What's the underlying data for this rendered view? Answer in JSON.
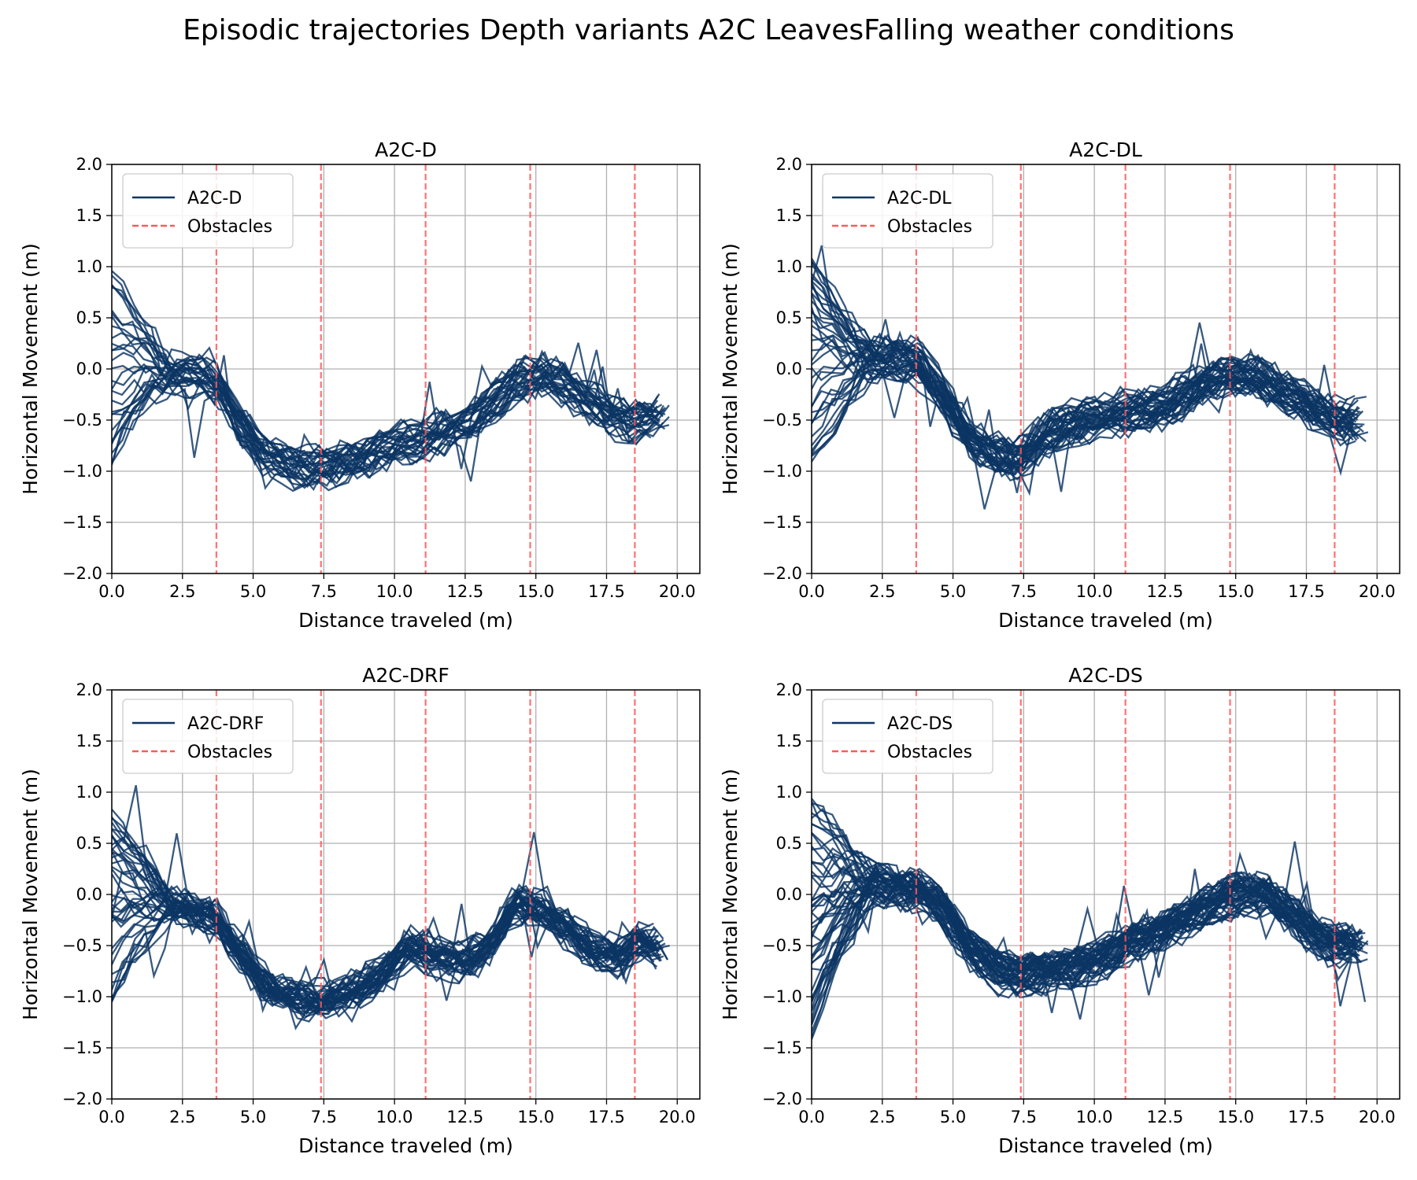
{
  "figure": {
    "title": "Episodic trajectories Depth variants A2C LeavesFalling weather conditions"
  },
  "colors": {
    "series": "#0b3563",
    "obstacle": "#ff5a5a",
    "grid": "#b0b0b0"
  },
  "chart_data": [
    {
      "type": "line",
      "title": "A2C-D",
      "xlabel": "Distance traveled (m)",
      "ylabel": "Horizontal Movement (m)",
      "xlim": [
        0,
        20.8
      ],
      "ylim": [
        -2,
        2
      ],
      "xticks": [
        "0.0",
        "2.5",
        "5.0",
        "7.5",
        "10.0",
        "12.5",
        "15.0",
        "17.5",
        "20.0"
      ],
      "yticks": [
        "−2.0",
        "−1.5",
        "−1.0",
        "−0.5",
        "0.0",
        "0.5",
        "1.0",
        "1.5",
        "2.0"
      ],
      "grid": true,
      "legend": {
        "position": "top-left",
        "entries": [
          "A2C-D",
          "Obstacles"
        ]
      },
      "obstacles_x": [
        3.7,
        7.4,
        11.1,
        14.8,
        18.5
      ],
      "n_episodes": 30,
      "mean_path": {
        "x": [
          0,
          1,
          2,
          3,
          3.7,
          4.5,
          5.5,
          6.5,
          7.4,
          8.5,
          9.5,
          10.5,
          11.5,
          12.5,
          13.5,
          14.5,
          15.3,
          16,
          17,
          18,
          18.6,
          19.5
        ],
        "y": [
          0.2,
          0.1,
          -0.05,
          -0.05,
          -0.15,
          -0.55,
          -0.85,
          -0.95,
          -0.95,
          -0.9,
          -0.8,
          -0.7,
          -0.65,
          -0.55,
          -0.3,
          -0.1,
          -0.05,
          -0.15,
          -0.35,
          -0.5,
          -0.5,
          -0.45
        ]
      },
      "start_range": [
        -0.9,
        0.95
      ]
    },
    {
      "type": "line",
      "title": "A2C-DL",
      "xlabel": "Distance traveled (m)",
      "ylabel": "Horizontal Movement (m)",
      "xlim": [
        0,
        20.8
      ],
      "ylim": [
        -2,
        2
      ],
      "xticks": [
        "0.0",
        "2.5",
        "5.0",
        "7.5",
        "10.0",
        "12.5",
        "15.0",
        "17.5",
        "20.0"
      ],
      "yticks": [
        "−2.0",
        "−1.5",
        "−1.0",
        "−0.5",
        "0.0",
        "0.5",
        "1.0",
        "1.5",
        "2.0"
      ],
      "grid": true,
      "legend": {
        "position": "top-left",
        "entries": [
          "A2C-DL",
          "Obstacles"
        ]
      },
      "obstacles_x": [
        3.7,
        7.4,
        11.1,
        14.8,
        18.5
      ],
      "n_episodes": 40,
      "mean_path": {
        "x": [
          0,
          1,
          2,
          3,
          3.7,
          4.5,
          5.5,
          6.5,
          7.4,
          8.5,
          9.5,
          10.5,
          11.5,
          12.5,
          13.5,
          14.5,
          15.3,
          16,
          17,
          18,
          18.6,
          19.6
        ],
        "y": [
          0.1,
          0.1,
          0.1,
          0.1,
          0.1,
          -0.2,
          -0.65,
          -0.85,
          -0.85,
          -0.6,
          -0.5,
          -0.45,
          -0.4,
          -0.35,
          -0.2,
          -0.05,
          -0.05,
          -0.1,
          -0.25,
          -0.4,
          -0.5,
          -0.5
        ]
      },
      "start_range": [
        -1.0,
        1.2
      ]
    },
    {
      "type": "line",
      "title": "A2C-DRF",
      "xlabel": "Distance traveled (m)",
      "ylabel": "Horizontal Movement (m)",
      "xlim": [
        0,
        20.8
      ],
      "ylim": [
        -2,
        2
      ],
      "xticks": [
        "0.0",
        "2.5",
        "5.0",
        "7.5",
        "10.0",
        "12.5",
        "15.0",
        "17.5",
        "20.0"
      ],
      "yticks": [
        "−2.0",
        "−1.5",
        "−1.0",
        "−0.5",
        "0.0",
        "0.5",
        "1.0",
        "1.5",
        "2.0"
      ],
      "grid": true,
      "legend": {
        "position": "top-left",
        "entries": [
          "A2C-DRF",
          "Obstacles"
        ]
      },
      "obstacles_x": [
        3.7,
        7.4,
        11.1,
        14.8,
        18.5
      ],
      "n_episodes": 40,
      "mean_path": {
        "x": [
          0,
          1,
          2,
          3,
          3.7,
          4.5,
          5.5,
          6.5,
          7.4,
          8.5,
          9.5,
          10.5,
          11.5,
          12.5,
          13.5,
          14.3,
          15.3,
          16,
          17,
          18,
          18.6,
          19.5
        ],
        "y": [
          0.2,
          0.0,
          -0.1,
          -0.15,
          -0.25,
          -0.55,
          -0.9,
          -1.0,
          -1.05,
          -0.95,
          -0.8,
          -0.5,
          -0.6,
          -0.65,
          -0.45,
          -0.05,
          -0.15,
          -0.3,
          -0.55,
          -0.6,
          -0.45,
          -0.55
        ]
      },
      "start_range": [
        -1.0,
        0.85
      ]
    },
    {
      "type": "line",
      "title": "A2C-DS",
      "xlabel": "Distance traveled (m)",
      "ylabel": "Horizontal Movement (m)",
      "xlim": [
        0,
        20.8
      ],
      "ylim": [
        -2,
        2
      ],
      "xticks": [
        "0.0",
        "2.5",
        "5.0",
        "7.5",
        "10.0",
        "12.5",
        "15.0",
        "17.5",
        "20.0"
      ],
      "yticks": [
        "−2.0",
        "−1.5",
        "−1.0",
        "−0.5",
        "0.0",
        "0.5",
        "1.0",
        "1.5",
        "2.0"
      ],
      "grid": true,
      "legend": {
        "position": "top-left",
        "entries": [
          "A2C-DS",
          "Obstacles"
        ]
      },
      "obstacles_x": [
        3.7,
        7.4,
        11.1,
        14.8,
        18.5
      ],
      "n_episodes": 50,
      "mean_path": {
        "x": [
          0,
          1,
          2,
          3,
          3.7,
          4.5,
          5.5,
          6.5,
          7.4,
          8.5,
          9.5,
          10.5,
          11.5,
          12.5,
          13.5,
          14.5,
          15.3,
          16,
          17,
          18,
          18.6,
          19.6
        ],
        "y": [
          0.3,
          0.2,
          0.1,
          0.05,
          0.05,
          -0.1,
          -0.5,
          -0.75,
          -0.8,
          -0.75,
          -0.7,
          -0.6,
          -0.45,
          -0.35,
          -0.2,
          -0.05,
          0.0,
          0.0,
          -0.2,
          -0.45,
          -0.5,
          -0.5
        ]
      },
      "start_range": [
        -1.35,
        0.9
      ]
    }
  ]
}
